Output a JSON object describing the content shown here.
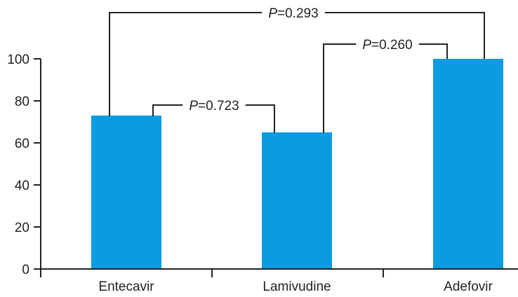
{
  "chart_data": {
    "type": "bar",
    "title": "",
    "xlabel": "",
    "ylabel": "",
    "categories": [
      "Entecavir",
      "Lamivudine",
      "Adefovir"
    ],
    "values": [
      73,
      65,
      100
    ],
    "ylim": [
      0,
      100
    ],
    "yticks": [
      0,
      20,
      40,
      60,
      80,
      100
    ],
    "grid": false,
    "legend": null,
    "bar_color": "#0a9be3",
    "annotations": [
      {
        "type": "significance-bracket",
        "from": "Entecavir",
        "to": "Lamivudine",
        "p_italic": "P",
        "p_rest": "=0.723"
      },
      {
        "type": "significance-bracket",
        "from": "Lamivudine",
        "to": "Adefovir",
        "p_italic": "P",
        "p_rest": "=0.260"
      },
      {
        "type": "significance-bracket",
        "from": "Entecavir",
        "to": "Adefovir",
        "p_italic": "P",
        "p_rest": "=0.293"
      }
    ]
  }
}
